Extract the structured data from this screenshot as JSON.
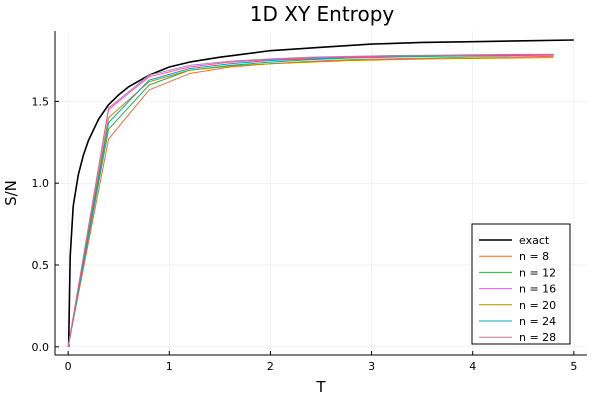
{
  "chart_data": {
    "type": "line",
    "title": "1D XY Entropy",
    "xlabel": "T",
    "ylabel": "S/N",
    "xlim": [
      -0.13,
      5.13
    ],
    "ylim": [
      -0.05,
      1.93
    ],
    "xticks": [
      0,
      1,
      2,
      3,
      4,
      5
    ],
    "xtick_labels": [
      "0",
      "1",
      "2",
      "3",
      "4",
      "5"
    ],
    "yticks": [
      0.0,
      0.5,
      1.0,
      1.5
    ],
    "ytick_labels": [
      "0.0",
      "0.5",
      "1.0",
      "1.5"
    ],
    "grid": true,
    "legend_position": "bottom-right",
    "series": [
      {
        "name": "exact",
        "color": "#000000",
        "x": [
          0.005,
          0.02,
          0.05,
          0.1,
          0.15,
          0.2,
          0.3,
          0.4,
          0.5,
          0.6,
          0.8,
          1.0,
          1.2,
          1.5,
          2.0,
          2.5,
          3.0,
          3.5,
          4.0,
          4.5,
          5.0
        ],
        "y": [
          0.0,
          0.55,
          0.86,
          1.05,
          1.17,
          1.26,
          1.39,
          1.48,
          1.54,
          1.59,
          1.66,
          1.71,
          1.74,
          1.77,
          1.81,
          1.83,
          1.85,
          1.86,
          1.865,
          1.87,
          1.875
        ]
      },
      {
        "name": "n = 8",
        "color": "#e26f46",
        "x": [
          0.0,
          0.4,
          0.8,
          1.2,
          1.6,
          2.0,
          2.4,
          2.8,
          3.2,
          3.6,
          4.0,
          4.4,
          4.8
        ],
        "y": [
          0.0,
          1.27,
          1.57,
          1.67,
          1.71,
          1.73,
          1.745,
          1.755,
          1.76,
          1.765,
          1.77,
          1.772,
          1.775
        ]
      },
      {
        "name": "n = 12",
        "color": "#3da44d",
        "x": [
          0.0,
          0.4,
          0.8,
          1.2,
          1.6,
          2.0,
          2.4,
          2.8,
          3.2,
          3.6,
          4.0,
          4.4,
          4.8
        ],
        "y": [
          0.0,
          1.33,
          1.6,
          1.69,
          1.72,
          1.74,
          1.755,
          1.765,
          1.77,
          1.775,
          1.778,
          1.78,
          1.782
        ]
      },
      {
        "name": "n = 16",
        "color": "#c271d2",
        "x": [
          0.0,
          0.4,
          0.8,
          1.2,
          1.6,
          2.0,
          2.4,
          2.8,
          3.2,
          3.6,
          4.0,
          4.4,
          4.8
        ],
        "y": [
          0.0,
          1.46,
          1.66,
          1.72,
          1.745,
          1.76,
          1.77,
          1.775,
          1.78,
          1.782,
          1.785,
          1.787,
          1.788
        ]
      },
      {
        "name": "n = 20",
        "color": "#ac8d18",
        "x": [
          0.0,
          0.4,
          0.8,
          1.2,
          1.6,
          2.0,
          2.4,
          2.8,
          3.2,
          3.6,
          4.0,
          4.4,
          4.8
        ],
        "y": [
          0.0,
          1.4,
          1.62,
          1.69,
          1.715,
          1.73,
          1.74,
          1.75,
          1.755,
          1.76,
          1.762,
          1.765,
          1.767
        ]
      },
      {
        "name": "n = 24",
        "color": "#00a9ad",
        "x": [
          0.0,
          0.4,
          0.8,
          1.2,
          1.6,
          2.0,
          2.4,
          2.8,
          3.2,
          3.6,
          4.0,
          4.4,
          4.8
        ],
        "y": [
          0.0,
          1.37,
          1.63,
          1.7,
          1.73,
          1.75,
          1.76,
          1.77,
          1.775,
          1.778,
          1.78,
          1.782,
          1.784
        ]
      },
      {
        "name": "n = 28",
        "color": "#ed5e93",
        "x": [
          0.0,
          0.4,
          0.8,
          1.2,
          1.6,
          2.0,
          2.4,
          2.8,
          3.2,
          3.6,
          4.0,
          4.4,
          4.8
        ],
        "y": [
          0.0,
          1.45,
          1.65,
          1.71,
          1.74,
          1.755,
          1.765,
          1.772,
          1.777,
          1.78,
          1.782,
          1.784,
          1.785
        ]
      }
    ]
  }
}
